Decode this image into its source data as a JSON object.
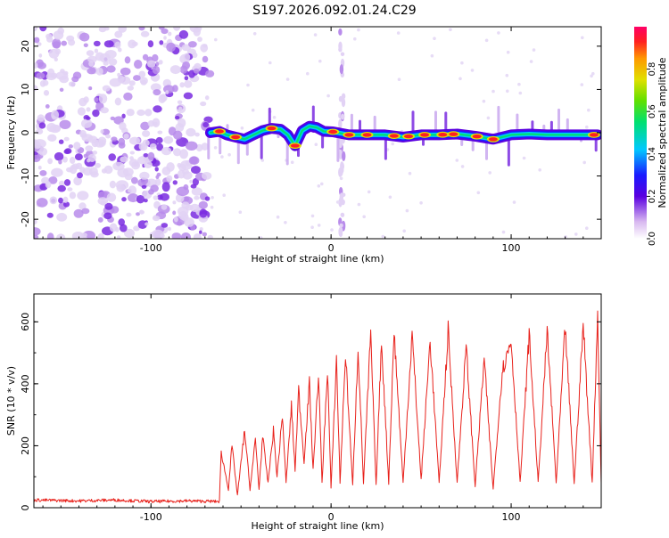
{
  "figure": {
    "title": "S197.2026.092.01.24.C29"
  },
  "chart_data": [
    {
      "type": "heatmap",
      "name": "spectrogram",
      "xlabel": "Height of straight line (km)",
      "ylabel": "Frequency (Hz)",
      "xlim": [
        -165,
        150
      ],
      "ylim": [
        -24.5,
        24.5
      ],
      "x_ticks": [
        -100,
        0,
        100
      ],
      "y_ticks": [
        -20,
        -10,
        0,
        10,
        20
      ],
      "noise_region": [
        -165,
        -70
      ],
      "interference_line_x": 6,
      "signal_track": [
        {
          "x": -67,
          "f": 0.0
        },
        {
          "x": -62,
          "f": 0.3
        },
        {
          "x": -58,
          "f": -0.5
        },
        {
          "x": -53,
          "f": -1.0
        },
        {
          "x": -48,
          "f": -1.5
        },
        {
          "x": -43,
          "f": -0.5
        },
        {
          "x": -38,
          "f": 0.5
        },
        {
          "x": -33,
          "f": 1.0
        },
        {
          "x": -28,
          "f": 0.8
        },
        {
          "x": -24,
          "f": -0.5
        },
        {
          "x": -20,
          "f": -3.0
        },
        {
          "x": -16,
          "f": 0.5
        },
        {
          "x": -12,
          "f": 1.5
        },
        {
          "x": -8,
          "f": 1.2
        },
        {
          "x": -4,
          "f": 0.3
        },
        {
          "x": 1,
          "f": 0.2
        },
        {
          "x": 10,
          "f": -0.5
        },
        {
          "x": 20,
          "f": -0.5
        },
        {
          "x": 30,
          "f": -0.5
        },
        {
          "x": 40,
          "f": -1.0
        },
        {
          "x": 50,
          "f": -0.5
        },
        {
          "x": 60,
          "f": -0.5
        },
        {
          "x": 70,
          "f": -0.3
        },
        {
          "x": 80,
          "f": -0.8
        },
        {
          "x": 90,
          "f": -1.5
        },
        {
          "x": 100,
          "f": -0.5
        },
        {
          "x": 110,
          "f": -0.3
        },
        {
          "x": 120,
          "f": -0.5
        },
        {
          "x": 130,
          "f": -0.5
        },
        {
          "x": 140,
          "f": -0.5
        },
        {
          "x": 148,
          "f": -0.5
        }
      ],
      "hotspots": [
        -62,
        -53,
        -33,
        -20,
        1,
        10,
        20,
        35,
        43,
        52,
        62,
        68,
        81,
        90,
        146
      ]
    },
    {
      "type": "line",
      "name": "snr",
      "xlabel": "Height of straight line (km)",
      "ylabel": "SNR (10 * v/v)",
      "xlim": [
        -165,
        150
      ],
      "ylim": [
        0,
        690
      ],
      "x_ticks": [
        -100,
        0,
        100
      ],
      "y_ticks": [
        0,
        200,
        400,
        600
      ],
      "color": "#e8211b",
      "series": [
        {
          "name": "SNR",
          "x": [
            -165,
            -140,
            -120,
            -100,
            -80,
            -62,
            -61,
            -57,
            -55,
            -52,
            -48,
            -45,
            -42,
            -40,
            -38,
            -35,
            -32,
            -30,
            -27,
            -25,
            -22,
            -20,
            -18,
            -15,
            -12,
            -10,
            -7,
            -5,
            -2,
            0,
            3,
            5,
            8,
            12,
            15,
            18,
            22,
            25,
            28,
            32,
            35,
            40,
            45,
            50,
            55,
            60,
            65,
            70,
            75,
            80,
            85,
            90,
            95,
            100,
            105,
            110,
            115,
            120,
            125,
            130,
            135,
            140,
            145,
            148,
            150
          ],
          "y": [
            25,
            22,
            25,
            20,
            22,
            20,
            180,
            60,
            200,
            40,
            250,
            60,
            220,
            60,
            230,
            80,
            250,
            100,
            300,
            80,
            330,
            120,
            380,
            150,
            400,
            120,
            430,
            80,
            450,
            60,
            480,
            80,
            500,
            70,
            520,
            80,
            560,
            70,
            540,
            80,
            570,
            80,
            560,
            90,
            540,
            80,
            570,
            80,
            520,
            70,
            480,
            60,
            440,
            540,
            80,
            560,
            80,
            570,
            80,
            580,
            80,
            590,
            80,
            620,
            80
          ]
        }
      ]
    }
  ],
  "colorbar": {
    "label": "Normalized spectral amplitude",
    "ticks": [
      "0.0",
      "0.2",
      "0.4",
      "0.6",
      "0.8"
    ],
    "colors": [
      "#f2eaf7",
      "#7b1ad9",
      "#1a1aff",
      "#00c8ff",
      "#00e070",
      "#40e000",
      "#e0e000",
      "#ff9900",
      "#ff2020",
      "#ff0060"
    ]
  }
}
